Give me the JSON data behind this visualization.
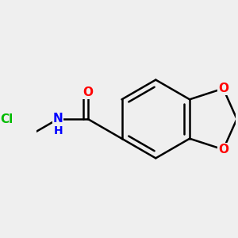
{
  "background_color": "#efefef",
  "bond_color": "#000000",
  "bond_width": 1.8,
  "atom_colors": {
    "O": "#ff0000",
    "N": "#0000ff",
    "Cl": "#00bb00",
    "C": "#000000"
  },
  "font_size_atoms": 11,
  "font_size_h": 10
}
